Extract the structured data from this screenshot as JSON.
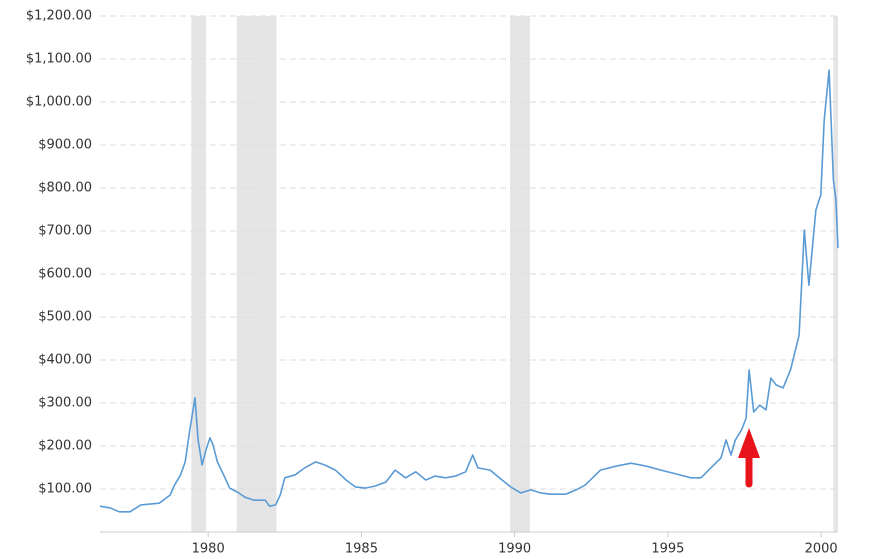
{
  "chart_data": {
    "type": "line",
    "x": [
      1976.47,
      1976.8,
      1977.1,
      1977.45,
      1977.8,
      1978.1,
      1978.4,
      1978.76,
      1978.9,
      1979.1,
      1979.25,
      1979.4,
      1979.57,
      1979.67,
      1979.8,
      1979.93,
      1980.06,
      1980.16,
      1980.3,
      1980.55,
      1980.7,
      1980.95,
      1981.2,
      1981.5,
      1981.86,
      1982.0,
      1982.2,
      1982.35,
      1982.5,
      1982.84,
      1983.15,
      1983.5,
      1983.8,
      1984.15,
      1984.5,
      1984.8,
      1985.13,
      1985.45,
      1985.8,
      1986.1,
      1986.44,
      1986.77,
      1987.1,
      1987.4,
      1987.75,
      1988.07,
      1988.4,
      1988.63,
      1988.8,
      1989.2,
      1989.5,
      1989.87,
      1990.2,
      1990.52,
      1990.85,
      1991.17,
      1991.66,
      1992.0,
      1992.3,
      1992.8,
      1993.3,
      1993.8,
      1994.3,
      1994.77,
      1995.26,
      1995.75,
      1996.08,
      1996.4,
      1996.73,
      1996.9,
      1997.06,
      1997.2,
      1997.4,
      1997.55,
      1997.65,
      1997.8,
      1998.0,
      1998.2,
      1998.36,
      1998.53,
      1998.76,
      1999.0,
      1999.28,
      1999.45,
      1999.6,
      1999.83,
      1999.99,
      2000.1,
      2000.26,
      2000.4,
      2000.48,
      2000.55
    ],
    "series": [
      {
        "color": "#5b9bd5",
        "values": [
          60,
          56,
          47,
          47,
          63,
          65,
          67,
          86,
          109,
          133,
          163,
          237,
          312,
          214,
          156,
          191,
          219,
          202,
          163,
          126,
          102,
          93,
          81,
          74,
          74,
          60,
          63,
          86,
          126,
          133,
          149,
          163,
          156,
          144,
          121,
          105,
          102,
          107,
          116,
          144,
          126,
          140,
          121,
          130,
          126,
          130,
          140,
          179,
          149,
          144,
          126,
          105,
          91,
          98,
          91,
          88,
          88,
          98,
          109,
          144,
          153,
          160,
          153,
          144,
          135,
          126,
          126,
          149,
          172,
          214,
          179,
          214,
          237,
          265,
          377,
          279,
          295,
          284,
          358,
          342,
          335,
          377,
          458,
          702,
          574,
          749,
          784,
          958,
          1074,
          819,
          772,
          660
        ]
      }
    ],
    "recessions": [
      [
        1979.45,
        1979.93
      ],
      [
        1980.93,
        1982.23
      ],
      [
        1989.85,
        1990.5
      ],
      [
        2000.4,
        2000.55
      ]
    ],
    "recession_color": "#e5e5e5",
    "xlim": [
      1976.47,
      2000.55
    ],
    "xticks": [
      1980,
      1985,
      1990,
      1995,
      2000
    ],
    "ylim": [
      0,
      1200
    ],
    "yticks": [
      {
        "value": 100,
        "label": "$100.00"
      },
      {
        "value": 200,
        "label": "$200.00"
      },
      {
        "value": 300,
        "label": "$300.00"
      },
      {
        "value": 400,
        "label": "$400.00"
      },
      {
        "value": 500,
        "label": "$500.00"
      },
      {
        "value": 600,
        "label": "$600.00"
      },
      {
        "value": 700,
        "label": "$700.00"
      },
      {
        "value": 800,
        "label": "$800.00"
      },
      {
        "value": 900,
        "label": "$900.00"
      },
      {
        "value": 1000,
        "label": "$1,000.00"
      },
      {
        "value": 1100,
        "label": "$1,100.00"
      },
      {
        "value": 1200,
        "label": "$1,200.00"
      }
    ],
    "grid": true
  }
}
